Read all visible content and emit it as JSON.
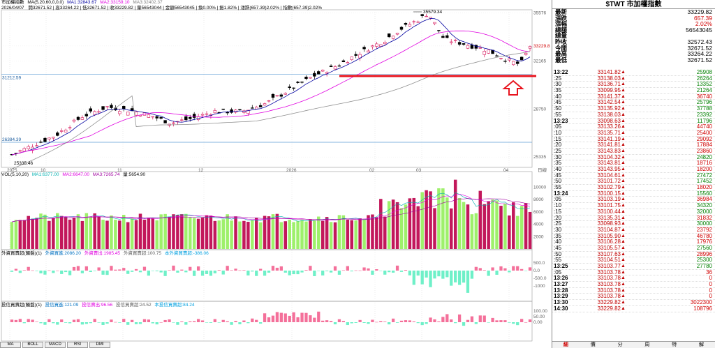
{
  "header": {
    "title": "市加權指數",
    "ma_params": "MA(5,20,60,0,0,0)",
    "ma1": "MA1:32843.67",
    "ma2": "MA2:33159.10",
    "ma3": "MA3:32402.37",
    "date": "2026/04/07",
    "ohlc_text": "開32671.52 | 高33264.22 | 低32671.52 | 收33229.82 | 量56543044 | 金額56543045 | 換0.00% | 振1.82% | 漲跌(657.39)2.02% | 指數(657.39)2.02%"
  },
  "price_axis": [
    "35576",
    "33229.8",
    "32165",
    "28750",
    "25335"
  ],
  "annotations": {
    "high_label": "35579.34",
    "low_label": "25335.46",
    "level_upper": "31212.59",
    "level_lower": "26384.39",
    "support_line_color": "#e8141e",
    "arrow_color": "#e8141e"
  },
  "time_axis": [
    "2025",
    "10",
    "11",
    "12",
    "2026",
    "02",
    "03",
    "04"
  ],
  "date_label": "日線",
  "vol_panel": {
    "label": "VOL(5,10,20)",
    "ma1": "MA1:6377.00",
    "ma2": "MA2:6647.00",
    "ma3": "MA3:7265.74",
    "vol": "量:5654.90",
    "axis": [
      "10000",
      "8000",
      "6000",
      "4000",
      "2000"
    ]
  },
  "foreign_panel": {
    "label": "外資買賣超(觸盤)(1)",
    "buy": "外資買進:2086.20",
    "sell": "外資賣出:1985.45",
    "net": "外資買賣超:100.75",
    "net2": "本外資買賣超:-386.06",
    "axis": [
      "500.0",
      "0.0",
      "-500.0",
      "-1000"
    ]
  },
  "margin_panel": {
    "label": "投信買賣超(觸盤)(1)",
    "buy": "投信買進:121.09",
    "sell": "投信賣出:96.56",
    "net": "投信買賣超:24.52",
    "net2": "本投信買賣超:84.24",
    "axis": [
      "100.00",
      "50.00",
      "0.00"
    ]
  },
  "bottom_tabs": [
    "MA",
    "BOLL",
    "MACD",
    "RSI",
    "DMI"
  ],
  "panel": {
    "title": "$TWT 市加權指數",
    "info": [
      {
        "k": "最新",
        "v": "33229.82"
      },
      {
        "k": "漲跌",
        "v": "657.39"
      },
      {
        "k": "漲幅",
        "v": "2.02%"
      },
      {
        "k": "總額",
        "v": "56543045"
      },
      {
        "k": "總量",
        "v": ""
      },
      {
        "k": "昨收",
        "v": "32572.43"
      },
      {
        "k": "今開",
        "v": "32671.52"
      },
      {
        "k": "最高",
        "v": "33264.22"
      },
      {
        "k": "最低",
        "v": "32671.52"
      }
    ],
    "ticks": [
      {
        "t": "13:22",
        "p": "33141.82",
        "v": "25908",
        "min": true
      },
      {
        "t": ":25",
        "p": "33138.03",
        "v": "26264"
      },
      {
        "t": ":30",
        "p": "33136.71",
        "v": "13352"
      },
      {
        "t": ":35",
        "p": "33099.95",
        "v": "21264"
      },
      {
        "t": ":40",
        "p": "33141.37",
        "v": "36740",
        "red": true
      },
      {
        "t": ":45",
        "p": "33142.54",
        "v": "25796"
      },
      {
        "t": ":50",
        "p": "33135.92",
        "v": "37788"
      },
      {
        "t": ":55",
        "p": "33138.03",
        "v": "23392"
      },
      {
        "t": "13:23",
        "p": "33098.63",
        "v": "11796",
        "min": true
      },
      {
        "t": ":05",
        "p": "33133.26",
        "v": "44740",
        "red": true
      },
      {
        "t": ":10",
        "p": "33135.71",
        "v": "25400",
        "red": true
      },
      {
        "t": ":15",
        "p": "33141.19",
        "v": "29092",
        "red": true
      },
      {
        "t": ":20",
        "p": "33141.81",
        "v": "17884",
        "red": true
      },
      {
        "t": ":25",
        "p": "33143.83",
        "v": "23860",
        "red": true
      },
      {
        "t": ":30",
        "p": "33104.32",
        "v": "24820"
      },
      {
        "t": ":35",
        "p": "33143.81",
        "v": "18716",
        "red": true
      },
      {
        "t": ":40",
        "p": "33143.95",
        "v": "18200",
        "red": true
      },
      {
        "t": ":45",
        "p": "33104.61",
        "v": "27472"
      },
      {
        "t": ":50",
        "p": "33101.72",
        "v": "17452"
      },
      {
        "t": ":55",
        "p": "33102.79",
        "v": "18020",
        "red": true
      },
      {
        "t": "13:24",
        "p": "33100.15",
        "v": "15560",
        "min": true
      },
      {
        "t": ":05",
        "p": "33103.19",
        "v": "36984",
        "red": true
      },
      {
        "t": ":10",
        "p": "33101.75",
        "v": "34320"
      },
      {
        "t": ":15",
        "p": "33100.44",
        "v": "32000"
      },
      {
        "t": ":20",
        "p": "33135.31",
        "v": "31832",
        "red": true
      },
      {
        "t": ":25",
        "p": "33098.93",
        "v": "30000"
      },
      {
        "t": ":30",
        "p": "33104.87",
        "v": "23792",
        "red": true
      },
      {
        "t": ":35",
        "p": "33105.90",
        "v": "46780",
        "red": true
      },
      {
        "t": ":40",
        "p": "33106.28",
        "v": "17976",
        "red": true
      },
      {
        "t": ":45",
        "p": "33105.57",
        "v": "27560"
      },
      {
        "t": ":50",
        "p": "33107.63",
        "v": "28996",
        "red": true
      },
      {
        "t": ":55",
        "p": "33104.51",
        "v": "25300"
      },
      {
        "t": "13:25",
        "p": "33103.77",
        "v": "27780",
        "min": true
      },
      {
        "t": ":05",
        "p": "33103.78",
        "v": "36",
        "red": true
      },
      {
        "t": "13:26",
        "p": "33103.78",
        "v": "0",
        "min": true,
        "red": true
      },
      {
        "t": "13:27",
        "p": "33103.78",
        "v": "0",
        "min": true,
        "red": true
      },
      {
        "t": "13:28",
        "p": "33103.78",
        "v": "0",
        "min": true,
        "red": true
      },
      {
        "t": "13:29",
        "p": "33103.78",
        "v": "0",
        "min": true,
        "red": true
      },
      {
        "t": "13:30",
        "p": "33229.82",
        "v": "3022300",
        "min": true,
        "red": true
      },
      {
        "t": "14:30",
        "p": "33229.82",
        "v": "108796",
        "min": true,
        "red": true
      }
    ],
    "tabs": [
      "細",
      "價",
      "分",
      "周",
      "特",
      "解"
    ]
  },
  "colors": {
    "up": "#d6145a",
    "down": "#000000",
    "vol_up": "#c2185b",
    "vol_down": "#9ef06b",
    "ma1": "#0000a0",
    "ma2": "#e000e0",
    "ma3": "#909090",
    "foreign_pos": "#f4709a",
    "foreign_neg": "#6ff0c8"
  }
}
